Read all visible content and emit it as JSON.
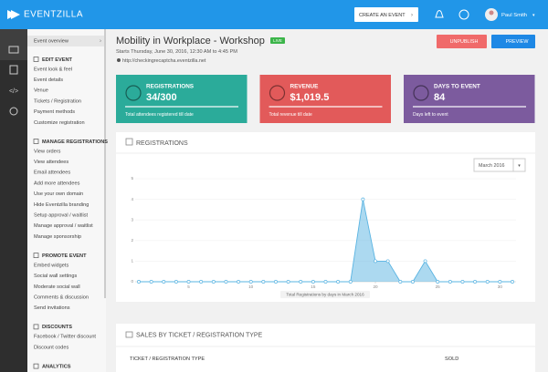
{
  "header": {
    "logo": "EVENTZILLA",
    "create_button": "CREATE AN EVENT",
    "user": "Paul Smith"
  },
  "sidebar": {
    "overview": "Event overview",
    "sections": [
      {
        "title": "EDIT EVENT",
        "items": [
          "Event look & feel",
          "Event details",
          "Venue",
          "Tickets / Registration",
          "Payment methods",
          "Customize registration"
        ]
      },
      {
        "title": "MANAGE REGISTRATIONS",
        "items": [
          "View orders",
          "View attendees",
          "Email attendees",
          "Add more attendees",
          "Use your own domain",
          "Hide Eventzilla branding",
          "Setup approval / waitlist",
          "Manage approval / waitlist",
          "Manage sponsorship"
        ]
      },
      {
        "title": "PROMOTE EVENT",
        "items": [
          "Embed widgets",
          "Social wall settings",
          "Moderate social wall",
          "Comments & discussion",
          "Send invitations"
        ]
      },
      {
        "title": "DISCOUNTS",
        "items": [
          "Facebook / Twitter discount",
          "Discount codes"
        ]
      },
      {
        "title": "ANALYTICS",
        "items": []
      }
    ]
  },
  "event": {
    "title": "Mobility in Workplace - Workshop",
    "status": "LIVE",
    "date": "Starts Thursday, June 30, 2016, 12:30 AM to 4:45 PM",
    "url": "http://checkingrecaptcha.eventzilla.net",
    "unpublish": "UNPUBLISH",
    "preview": "PREVIEW"
  },
  "stats": [
    {
      "title": "REGISTRATIONS",
      "value": "34/300",
      "caption": "Total attendees registered till date",
      "color": "#2bab9a"
    },
    {
      "title": "REVENUE",
      "value": "$1,019.5",
      "caption": "Total revenue till date",
      "color": "#e25a5a"
    },
    {
      "title": "DAYS TO EVENT",
      "value": "84",
      "caption": "Days left to event",
      "color": "#7c5b9e"
    }
  ],
  "chart_data": {
    "type": "line",
    "title": "REGISTRATIONS",
    "period": "March 2016",
    "xlabel": "Total Registrations by days in March 2016",
    "x": [
      1,
      2,
      3,
      4,
      5,
      6,
      7,
      8,
      9,
      10,
      11,
      12,
      13,
      14,
      15,
      16,
      17,
      18,
      19,
      20,
      21,
      22,
      23,
      24,
      25,
      26,
      27,
      28,
      29,
      30,
      31
    ],
    "values": [
      0,
      0,
      0,
      0,
      0,
      0,
      0,
      0,
      0,
      0,
      0,
      0,
      0,
      0,
      0,
      0,
      0,
      0,
      4,
      1,
      1,
      0,
      0,
      1,
      0,
      0,
      0,
      0,
      0,
      0,
      0
    ],
    "color": "#5ab4e2",
    "xlim": [
      1,
      31
    ],
    "xticks": [
      5,
      10,
      15,
      20,
      25,
      30
    ],
    "ylim": [
      0,
      5
    ],
    "yticks": [
      0,
      1,
      2,
      3,
      4,
      5
    ],
    "grid": true
  },
  "sales": {
    "title": "SALES BY TICKET / REGISTRATION TYPE",
    "columns": [
      "TICKET / REGISTRATION TYPE",
      "SOLD"
    ]
  }
}
